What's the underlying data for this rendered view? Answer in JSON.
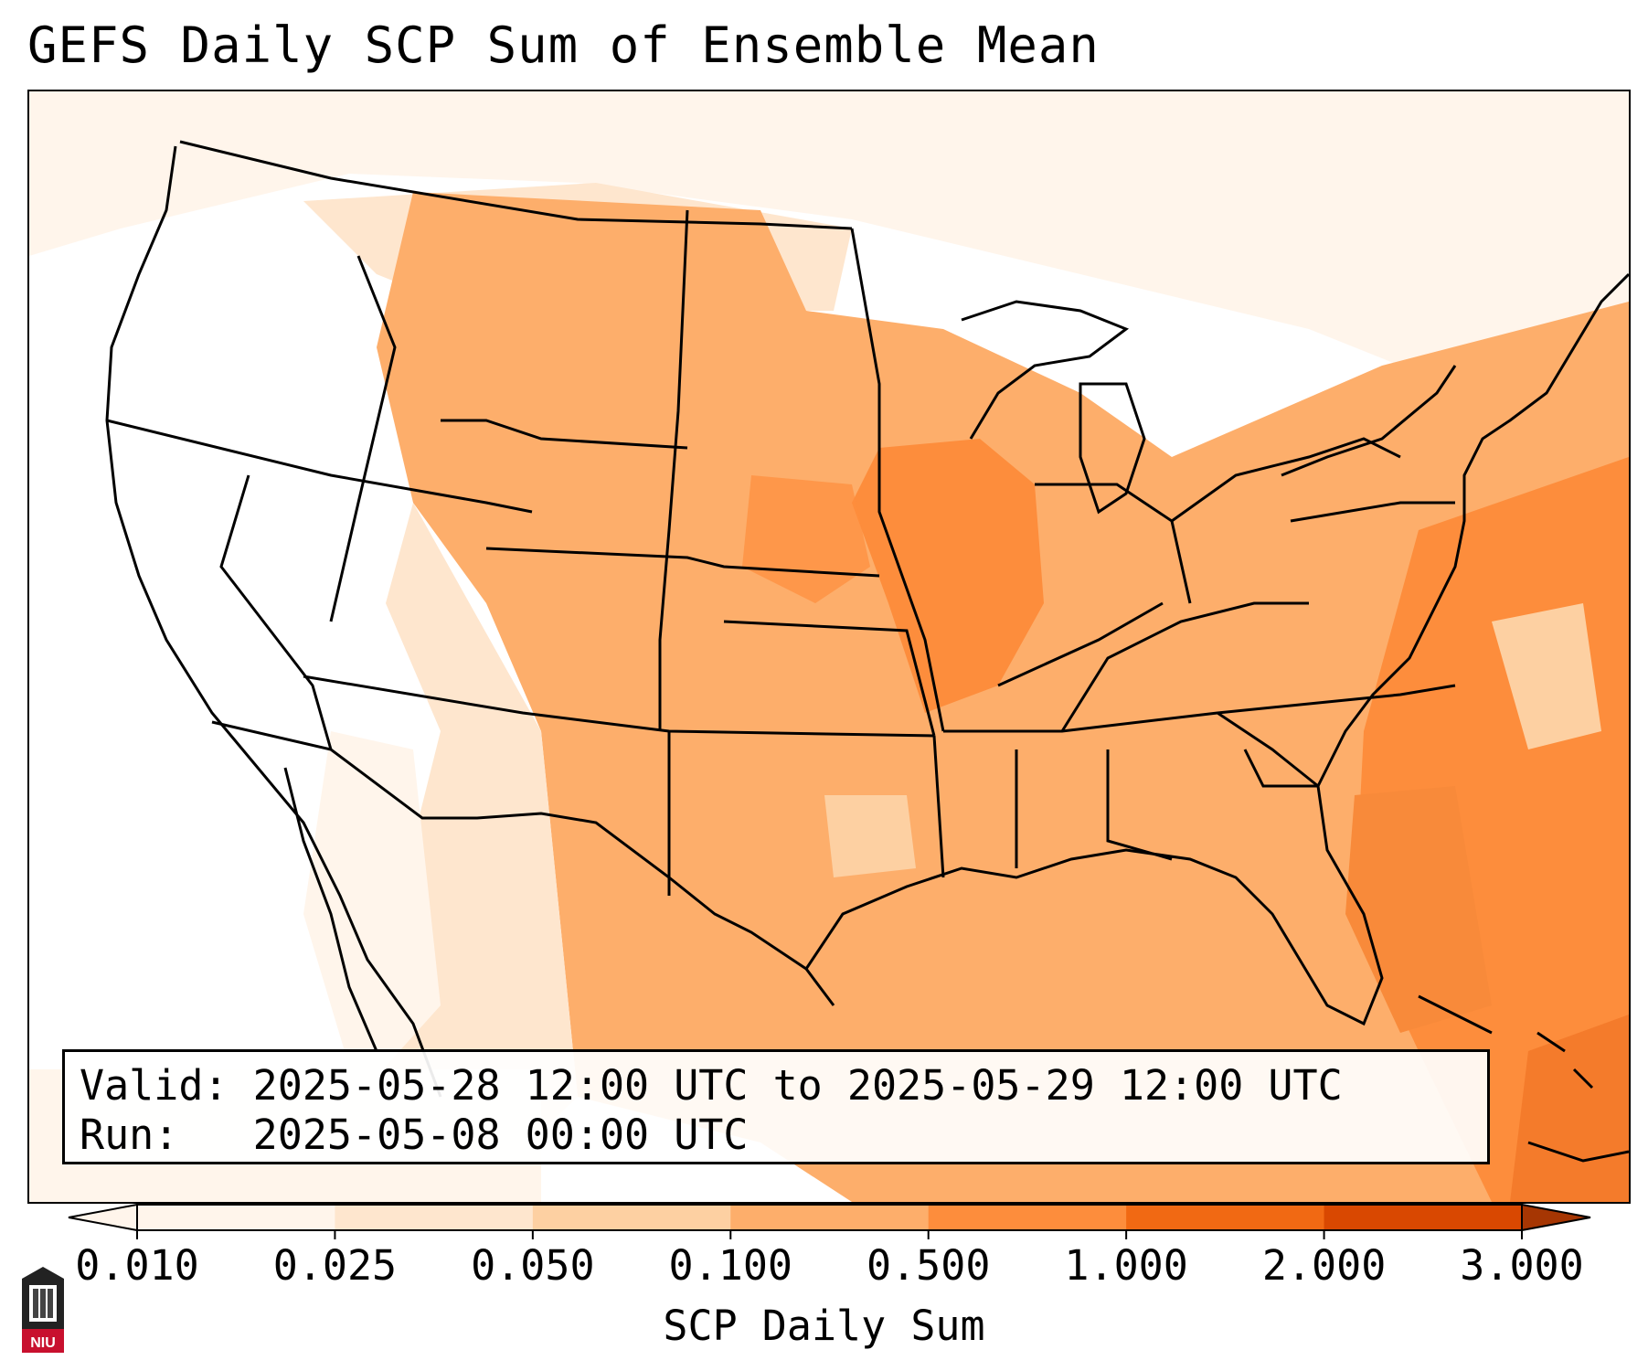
{
  "title": "GEFS Daily SCP Sum of Ensemble Mean",
  "info": {
    "valid_line": "Valid: 2025-05-28 12:00 UTC to 2025-05-29 12:00 UTC",
    "run_line": "Run:   2025-05-08 00:00 UTC"
  },
  "colorbar": {
    "label": "SCP Daily Sum",
    "ticks": [
      "0.010",
      "0.025",
      "0.050",
      "0.100",
      "0.500",
      "1.000",
      "2.000",
      "3.000"
    ],
    "colors": [
      "#fff5eb",
      "#fee6ce",
      "#fdd0a2",
      "#fdae6b",
      "#fd8d3c",
      "#f16913",
      "#d94801",
      "#a63603"
    ],
    "extend": "both"
  },
  "map": {
    "region": "CONUS",
    "field_colors": {
      "west": "#ffffff",
      "plains": "#fdae6b",
      "midwest_core": "#fd8d3c",
      "atlantic": "#fd8d3c",
      "light": "#fee6ce",
      "very_light": "#fff5eb"
    }
  },
  "logo": {
    "icon": "niu-logo-icon",
    "text": "NIU"
  }
}
